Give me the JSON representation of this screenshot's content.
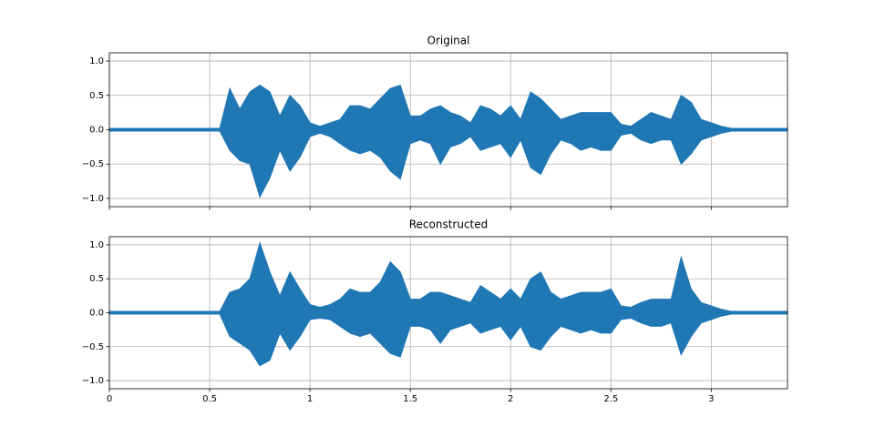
{
  "chart_data": [
    {
      "type": "envelope",
      "title": "Original",
      "color": "#1f77b4",
      "grid": true,
      "show_xtick_labels": false,
      "xlim": [
        0,
        3.38
      ],
      "ylim": [
        -1.12,
        1.12
      ],
      "xticks": [
        0.0,
        0.5,
        1.0,
        1.5,
        2.0,
        2.5,
        3.0
      ],
      "yticks": [
        {
          "value": -1.0,
          "label": "−1.0"
        },
        {
          "value": -0.5,
          "label": "−0.5"
        },
        {
          "value": 0,
          "label": "0.0"
        },
        {
          "value": 0.5,
          "label": "0.5"
        },
        {
          "value": 1.0,
          "label": "1.0"
        }
      ],
      "x": [
        0,
        0.05,
        0.1,
        0.15,
        0.2,
        0.25,
        0.3,
        0.35,
        0.4,
        0.45,
        0.5,
        0.55,
        0.6,
        0.65,
        0.7,
        0.75,
        0.8,
        0.85,
        0.9,
        0.95,
        1.0,
        1.05,
        1.1,
        1.15,
        1.2,
        1.25,
        1.3,
        1.35,
        1.4,
        1.45,
        1.5,
        1.55,
        1.6,
        1.65,
        1.7,
        1.75,
        1.8,
        1.85,
        1.9,
        1.95,
        2.0,
        2.05,
        2.1,
        2.15,
        2.2,
        2.25,
        2.3,
        2.35,
        2.4,
        2.45,
        2.5,
        2.55,
        2.6,
        2.65,
        2.7,
        2.75,
        2.8,
        2.85,
        2.9,
        2.95,
        3.0,
        3.05,
        3.1,
        3.15,
        3.2,
        3.25,
        3.3,
        3.35,
        3.38
      ],
      "upper": [
        0.02,
        0.02,
        0.02,
        0.02,
        0.02,
        0.02,
        0.02,
        0.02,
        0.02,
        0.02,
        0.02,
        0.02,
        0.6,
        0.3,
        0.55,
        0.65,
        0.55,
        0.2,
        0.5,
        0.35,
        0.1,
        0.05,
        0.1,
        0.15,
        0.35,
        0.35,
        0.3,
        0.45,
        0.6,
        0.65,
        0.2,
        0.2,
        0.3,
        0.35,
        0.25,
        0.2,
        0.1,
        0.35,
        0.3,
        0.2,
        0.35,
        0.15,
        0.55,
        0.45,
        0.3,
        0.15,
        0.2,
        0.25,
        0.25,
        0.25,
        0.25,
        0.08,
        0.05,
        0.15,
        0.25,
        0.2,
        0.15,
        0.5,
        0.4,
        0.15,
        0.1,
        0.05,
        0.02,
        0.02,
        0.02,
        0.02,
        0.02,
        0.02,
        0.02
      ],
      "lower": [
        -0.02,
        -0.02,
        -0.02,
        -0.02,
        -0.02,
        -0.02,
        -0.02,
        -0.02,
        -0.02,
        -0.02,
        -0.02,
        -0.02,
        -0.3,
        -0.45,
        -0.5,
        -0.98,
        -0.7,
        -0.3,
        -0.6,
        -0.4,
        -0.1,
        -0.05,
        -0.1,
        -0.2,
        -0.3,
        -0.35,
        -0.3,
        -0.4,
        -0.6,
        -0.72,
        -0.2,
        -0.15,
        -0.2,
        -0.5,
        -0.25,
        -0.2,
        -0.1,
        -0.3,
        -0.25,
        -0.2,
        -0.4,
        -0.15,
        -0.55,
        -0.65,
        -0.35,
        -0.15,
        -0.2,
        -0.3,
        -0.25,
        -0.3,
        -0.3,
        -0.08,
        -0.05,
        -0.15,
        -0.2,
        -0.15,
        -0.15,
        -0.5,
        -0.35,
        -0.15,
        -0.1,
        -0.05,
        -0.02,
        -0.02,
        -0.02,
        -0.02,
        -0.02,
        -0.02,
        -0.02
      ]
    },
    {
      "type": "envelope",
      "title": "Reconstructed",
      "color": "#1f77b4",
      "grid": true,
      "show_xtick_labels": true,
      "xlim": [
        0,
        3.38
      ],
      "ylim": [
        -1.12,
        1.12
      ],
      "xticks": [
        0.0,
        0.5,
        1.0,
        1.5,
        2.0,
        2.5,
        3.0
      ],
      "yticks": [
        {
          "value": -1.0,
          "label": "−1.0"
        },
        {
          "value": -0.5,
          "label": "−0.5"
        },
        {
          "value": 0,
          "label": "0.0"
        },
        {
          "value": 0.5,
          "label": "0.5"
        },
        {
          "value": 1.0,
          "label": "1.0"
        }
      ],
      "x": [
        0,
        0.05,
        0.1,
        0.15,
        0.2,
        0.25,
        0.3,
        0.35,
        0.4,
        0.45,
        0.5,
        0.55,
        0.6,
        0.65,
        0.7,
        0.75,
        0.8,
        0.85,
        0.9,
        0.95,
        1.0,
        1.05,
        1.1,
        1.15,
        1.2,
        1.25,
        1.3,
        1.35,
        1.4,
        1.45,
        1.5,
        1.55,
        1.6,
        1.65,
        1.7,
        1.75,
        1.8,
        1.85,
        1.9,
        1.95,
        2.0,
        2.05,
        2.1,
        2.15,
        2.2,
        2.25,
        2.3,
        2.35,
        2.4,
        2.45,
        2.5,
        2.55,
        2.6,
        2.65,
        2.7,
        2.75,
        2.8,
        2.85,
        2.9,
        2.95,
        3.0,
        3.05,
        3.1,
        3.15,
        3.2,
        3.25,
        3.3,
        3.35,
        3.38
      ],
      "upper": [
        0.02,
        0.02,
        0.02,
        0.02,
        0.02,
        0.02,
        0.02,
        0.02,
        0.02,
        0.02,
        0.02,
        0.02,
        0.3,
        0.35,
        0.5,
        1.03,
        0.6,
        0.25,
        0.6,
        0.35,
        0.12,
        0.08,
        0.12,
        0.2,
        0.35,
        0.3,
        0.3,
        0.45,
        0.75,
        0.6,
        0.2,
        0.2,
        0.3,
        0.3,
        0.25,
        0.2,
        0.15,
        0.4,
        0.3,
        0.2,
        0.35,
        0.2,
        0.5,
        0.6,
        0.3,
        0.2,
        0.25,
        0.3,
        0.3,
        0.3,
        0.35,
        0.1,
        0.08,
        0.15,
        0.2,
        0.2,
        0.2,
        0.82,
        0.35,
        0.15,
        0.1,
        0.05,
        0.02,
        0.02,
        0.02,
        0.02,
        0.02,
        0.02,
        0.02
      ],
      "lower": [
        -0.02,
        -0.02,
        -0.02,
        -0.02,
        -0.02,
        -0.02,
        -0.02,
        -0.02,
        -0.02,
        -0.02,
        -0.02,
        -0.02,
        -0.35,
        -0.45,
        -0.55,
        -0.78,
        -0.7,
        -0.3,
        -0.55,
        -0.35,
        -0.1,
        -0.08,
        -0.1,
        -0.2,
        -0.3,
        -0.35,
        -0.3,
        -0.45,
        -0.6,
        -0.65,
        -0.2,
        -0.2,
        -0.25,
        -0.45,
        -0.25,
        -0.2,
        -0.15,
        -0.3,
        -0.25,
        -0.2,
        -0.4,
        -0.2,
        -0.5,
        -0.55,
        -0.35,
        -0.2,
        -0.25,
        -0.3,
        -0.25,
        -0.3,
        -0.3,
        -0.1,
        -0.08,
        -0.15,
        -0.2,
        -0.2,
        -0.15,
        -0.62,
        -0.35,
        -0.15,
        -0.1,
        -0.05,
        -0.02,
        -0.02,
        -0.02,
        -0.02,
        -0.02,
        -0.02,
        -0.02
      ]
    }
  ]
}
